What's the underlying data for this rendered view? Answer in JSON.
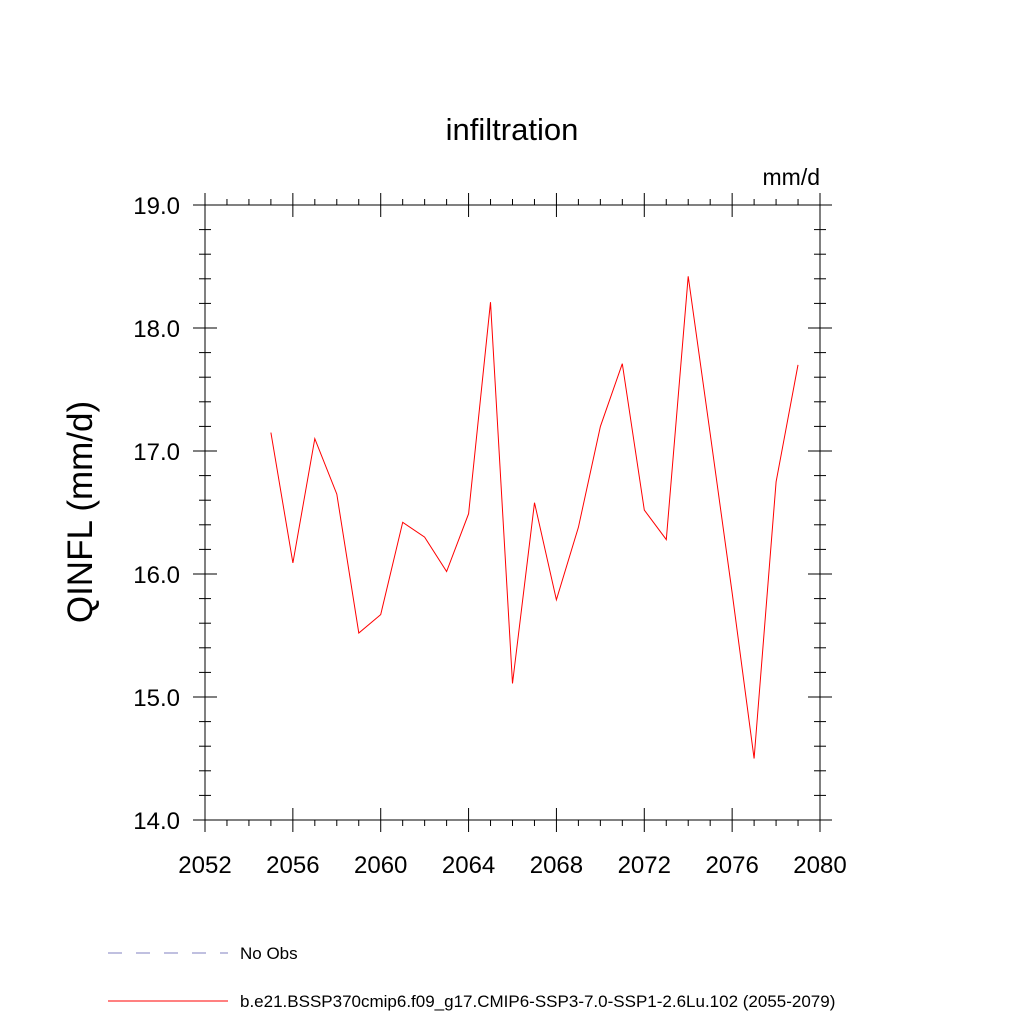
{
  "chart_data": {
    "type": "line",
    "title": "infiltration",
    "units": "mm/d",
    "ylabel": "QINFL  (mm/d)",
    "xlabel": "",
    "xlim": [
      2052,
      2080
    ],
    "ylim": [
      14.0,
      19.0
    ],
    "x_ticks": [
      2052,
      2056,
      2060,
      2064,
      2068,
      2072,
      2076,
      2080
    ],
    "y_ticks": [
      "14.0",
      "15.0",
      "16.0",
      "17.0",
      "18.0",
      "19.0"
    ],
    "grid": false,
    "legend_position": "bottom",
    "series": [
      {
        "name": "b.e21.BSSP370cmip6.f09_g17.CMIP6-SSP3-7.0-SSP1-2.6Lu.102 (2055-2079)",
        "color": "#ff0000",
        "style": "solid",
        "x": [
          2055,
          2056,
          2057,
          2058,
          2059,
          2060,
          2061,
          2062,
          2063,
          2064,
          2065,
          2066,
          2067,
          2068,
          2069,
          2070,
          2071,
          2072,
          2073,
          2074,
          2075,
          2076,
          2077,
          2078,
          2079
        ],
        "y": [
          17.15,
          16.09,
          17.1,
          16.65,
          15.52,
          15.67,
          16.42,
          16.3,
          16.02,
          16.49,
          18.21,
          15.11,
          16.58,
          15.79,
          16.38,
          17.2,
          17.71,
          16.52,
          16.28,
          18.42,
          17.14,
          15.85,
          14.5,
          16.75,
          17.7
        ]
      },
      {
        "name": "No Obs",
        "color": "#8080c0",
        "style": "dashed",
        "x": [],
        "y": []
      }
    ]
  }
}
